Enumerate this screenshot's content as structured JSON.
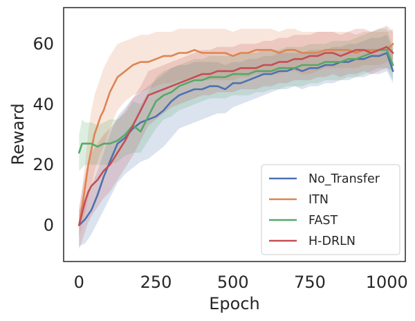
{
  "chart_data": {
    "type": "line",
    "title": "",
    "xlabel": "Epoch",
    "ylabel": "Reward",
    "xlim": [
      -50,
      1060
    ],
    "ylim": [
      -12,
      72
    ],
    "xticks": [
      0,
      250,
      500,
      750,
      1000
    ],
    "xtick_labels": [
      "0",
      "250",
      "500",
      "750",
      "1000"
    ],
    "yticks": [
      0,
      20,
      40,
      60
    ],
    "ytick_labels": [
      "0",
      "20",
      "40",
      "60"
    ],
    "grid": false,
    "legend_position": "lower-right",
    "series": [
      {
        "name": "No_Transfer",
        "color": "#4c72b0",
        "x": [
          0,
          20,
          40,
          60,
          80,
          100,
          125,
          150,
          175,
          200,
          225,
          250,
          275,
          300,
          325,
          350,
          375,
          400,
          425,
          450,
          475,
          500,
          525,
          550,
          575,
          600,
          625,
          650,
          675,
          700,
          725,
          750,
          775,
          800,
          825,
          850,
          875,
          900,
          925,
          950,
          975,
          1000,
          1020
        ],
        "y": [
          0,
          2,
          5,
          10,
          16,
          21,
          27,
          29,
          32,
          34,
          35,
          36,
          38,
          41,
          43,
          44,
          45,
          45,
          46,
          46,
          45,
          47,
          47,
          48,
          49,
          50,
          50,
          51,
          51,
          52,
          51,
          52,
          52,
          53,
          53,
          54,
          54,
          55,
          55,
          56,
          56,
          57,
          51
        ],
        "band": {
          "lower": [
            -7,
            -6,
            -3,
            1,
            5,
            9,
            14,
            17,
            19,
            21,
            22,
            24,
            26,
            29,
            32,
            33,
            34,
            35,
            36,
            37,
            37,
            39,
            40,
            41,
            42,
            43,
            44,
            45,
            45,
            46,
            45,
            46,
            46,
            47,
            47,
            48,
            48,
            49,
            49,
            50,
            50,
            51,
            47
          ],
          "upper": [
            5,
            9,
            13,
            18,
            24,
            30,
            36,
            39,
            42,
            44,
            46,
            48,
            50,
            52,
            53,
            53,
            54,
            54,
            54,
            54,
            53,
            54,
            54,
            55,
            55,
            56,
            56,
            57,
            57,
            57,
            57,
            58,
            58,
            58,
            59,
            59,
            60,
            60,
            61,
            62,
            62,
            63,
            58
          ]
        }
      },
      {
        "name": "ITN",
        "color": "#dd8452",
        "x": [
          0,
          10,
          20,
          30,
          40,
          50,
          60,
          70,
          80,
          100,
          125,
          150,
          175,
          200,
          225,
          250,
          275,
          300,
          325,
          350,
          375,
          400,
          425,
          450,
          475,
          500,
          525,
          550,
          575,
          600,
          625,
          650,
          675,
          700,
          725,
          750,
          775,
          800,
          825,
          850,
          875,
          900,
          925,
          950,
          975,
          1000,
          1020
        ],
        "y": [
          0,
          6,
          13,
          20,
          25,
          30,
          33,
          36,
          38,
          44,
          49,
          51,
          53,
          54,
          54,
          55,
          56,
          56,
          57,
          57,
          58,
          57,
          57,
          57,
          57,
          56,
          57,
          57,
          58,
          58,
          58,
          57,
          58,
          58,
          57,
          57,
          57,
          58,
          58,
          58,
          58,
          57,
          58,
          58,
          58,
          58,
          60
        ],
        "band": {
          "lower": [
            -4,
            0,
            4,
            9,
            13,
            18,
            21,
            24,
            26,
            32,
            38,
            41,
            43,
            44,
            45,
            46,
            47,
            47,
            48,
            48,
            49,
            48,
            48,
            48,
            48,
            48,
            49,
            49,
            50,
            50,
            50,
            50,
            51,
            51,
            50,
            50,
            51,
            52,
            52,
            52,
            52,
            52,
            53,
            53,
            53,
            54,
            55
          ],
          "upper": [
            4,
            12,
            21,
            31,
            38,
            43,
            46,
            49,
            52,
            56,
            60,
            61,
            62,
            63,
            63,
            64,
            64,
            64,
            65,
            65,
            65,
            65,
            65,
            65,
            65,
            64,
            65,
            65,
            65,
            65,
            65,
            64,
            65,
            65,
            64,
            64,
            64,
            64,
            64,
            64,
            64,
            63,
            64,
            64,
            64,
            64,
            65
          ]
        }
      },
      {
        "name": "FAST",
        "color": "#55a868",
        "x": [
          0,
          10,
          20,
          40,
          60,
          80,
          100,
          125,
          150,
          175,
          200,
          225,
          250,
          275,
          300,
          325,
          350,
          375,
          400,
          425,
          450,
          475,
          500,
          525,
          550,
          575,
          600,
          625,
          650,
          675,
          700,
          725,
          750,
          775,
          800,
          825,
          850,
          875,
          900,
          925,
          950,
          975,
          1000,
          1020
        ],
        "y": [
          24,
          27,
          27,
          27,
          26,
          27,
          27,
          28,
          30,
          33,
          31,
          36,
          41,
          43,
          44,
          46,
          47,
          48,
          48,
          49,
          49,
          49,
          50,
          50,
          50,
          51,
          51,
          51,
          52,
          52,
          52,
          53,
          53,
          53,
          54,
          54,
          54,
          55,
          55,
          56,
          57,
          58,
          58,
          53
        ],
        "band": {
          "lower": [
            18,
            19,
            20,
            20,
            20,
            20,
            20,
            21,
            23,
            24,
            24,
            28,
            32,
            35,
            36,
            38,
            39,
            40,
            41,
            42,
            42,
            42,
            43,
            43,
            43,
            44,
            44,
            45,
            45,
            46,
            46,
            46,
            47,
            47,
            48,
            48,
            48,
            49,
            49,
            50,
            51,
            52,
            52,
            48
          ],
          "upper": [
            30,
            35,
            34,
            34,
            33,
            34,
            35,
            35,
            37,
            41,
            40,
            44,
            49,
            51,
            52,
            53,
            54,
            55,
            55,
            56,
            56,
            56,
            56,
            57,
            57,
            57,
            58,
            58,
            58,
            59,
            59,
            59,
            60,
            60,
            60,
            61,
            61,
            61,
            62,
            63,
            64,
            65,
            65,
            59
          ]
        }
      },
      {
        "name": "H-DRLN",
        "color": "#c44e52",
        "x": [
          0,
          10,
          20,
          30,
          40,
          60,
          80,
          100,
          125,
          150,
          175,
          200,
          225,
          250,
          275,
          300,
          325,
          350,
          375,
          400,
          425,
          450,
          475,
          500,
          525,
          550,
          575,
          600,
          625,
          650,
          675,
          700,
          725,
          750,
          775,
          800,
          825,
          850,
          875,
          900,
          925,
          950,
          975,
          1000,
          1020
        ],
        "y": [
          0,
          4,
          8,
          11,
          13,
          15,
          18,
          20,
          24,
          28,
          33,
          38,
          43,
          44,
          45,
          46,
          47,
          48,
          49,
          50,
          50,
          51,
          51,
          51,
          52,
          52,
          52,
          53,
          53,
          54,
          54,
          55,
          55,
          56,
          56,
          57,
          57,
          56,
          57,
          58,
          58,
          57,
          58,
          59,
          57
        ],
        "band": {
          "lower": [
            -8,
            -5,
            -2,
            1,
            3,
            6,
            9,
            11,
            15,
            19,
            23,
            28,
            33,
            35,
            37,
            39,
            40,
            41,
            42,
            43,
            43,
            44,
            44,
            44,
            45,
            45,
            45,
            46,
            46,
            47,
            47,
            48,
            48,
            48,
            49,
            49,
            50,
            49,
            50,
            50,
            51,
            50,
            51,
            52,
            51
          ],
          "upper": [
            6,
            12,
            17,
            21,
            24,
            27,
            30,
            32,
            35,
            38,
            42,
            46,
            51,
            52,
            53,
            54,
            55,
            56,
            57,
            58,
            58,
            59,
            59,
            59,
            60,
            60,
            60,
            61,
            61,
            62,
            62,
            63,
            63,
            63,
            64,
            64,
            64,
            63,
            64,
            65,
            65,
            64,
            65,
            66,
            64
          ]
        }
      }
    ]
  }
}
